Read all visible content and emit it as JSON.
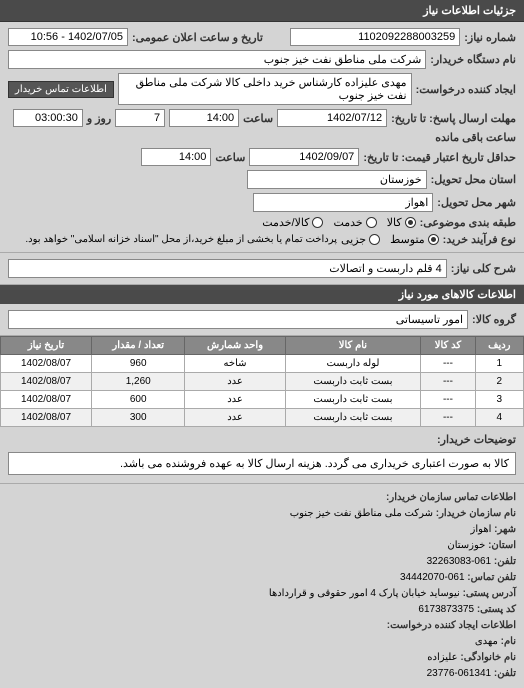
{
  "header": {
    "title": "جزئیات اطلاعات نیاز"
  },
  "info": {
    "request_number_label": "شماره نیاز:",
    "request_number": "1102092288003259",
    "public_datetime_label": "تاریخ و ساعت اعلان عمومی:",
    "public_datetime": "1402/07/05 - 10:56",
    "org_label": "نام دستگاه خریدار:",
    "org_value": "شرکت ملی مناطق نفت خیز جنوب",
    "requester_label": "ایجاد کننده درخواست:",
    "requester_value": "مهدی  علیزاده  کارشناس خرید داخلی کالا شرکت ملی مناطق نفت خیز جنوب",
    "contact_btn": "اطلاعات تماس خریدار",
    "deadline_send_label": "مهلت ارسال پاسخ: تا تاریخ:",
    "deadline_send_date": "1402/07/12",
    "deadline_send_time_label": "ساعت",
    "deadline_send_time": "14:00",
    "days_label": "روز و",
    "days_value": "7",
    "remain_label": "ساعت باقی مانده",
    "remain_value": "03:00:30",
    "validity_label": "حداقل تاریخ اعتبار قیمت: تا تاریخ:",
    "validity_date": "1402/09/07",
    "validity_time_label": "ساعت",
    "validity_time": "14:00",
    "province_label": "استان محل تحویل:",
    "province_value": "خوزستان",
    "city_label": "شهر محل تحویل:",
    "city_value": "اهواز",
    "subject_type_label": "طبقه بندی موضوعی:",
    "subject_kala": "کالا",
    "subject_service": "خدمت",
    "subject_both": "کالا/خدمت",
    "process_label": "نوع فرآیند خرید:",
    "process_avg": "متوسط",
    "process_partial": "جزیی",
    "process_note": "پرداخت تمام یا بخشی از مبلغ خرید،از محل \"اسناد خزانه اسلامی\" خواهد بود.",
    "desc_label": "شرح کلی نیاز:",
    "desc_value": "4 قلم داربست و اتصالات"
  },
  "goods_header": "اطلاعات کالاهای مورد نیاز",
  "goods_group_label": "گروه کالا:",
  "goods_group_value": "امور تاسیساتی",
  "table": {
    "columns": [
      "ردیف",
      "کد کالا",
      "نام کالا",
      "واحد شمارش",
      "تعداد / مقدار",
      "تاریخ نیاز"
    ],
    "rows": [
      [
        "1",
        "---",
        "لوله داربست",
        "شاخه",
        "960",
        "1402/08/07"
      ],
      [
        "2",
        "---",
        "بست ثابت داربست",
        "عدد",
        "1,260",
        "1402/08/07"
      ],
      [
        "3",
        "---",
        "بست ثابت داربست",
        "عدد",
        "600",
        "1402/08/07"
      ],
      [
        "4",
        "---",
        "بست ثابت داربست",
        "عدد",
        "300",
        "1402/08/07"
      ]
    ]
  },
  "buyer_notes_label": "توضیحات خریدار:",
  "buyer_notes": "کالا به صورت اعتباری خریداری می گردد. هزینه ارسال کالا به عهده فروشنده می باشد.",
  "contact": {
    "header": "اطلاعات تماس سازمان خریدار:",
    "org_name_label": "نام سازمان خریدار:",
    "org_name": "شرکت ملی مناطق نفت خیز جنوب",
    "city_label": "شهر:",
    "city": "اهواز",
    "province_label": "استان:",
    "province": "خوزستان",
    "phone_label": "تلفن:",
    "phone": "061-32263083",
    "fax_label": "تلفن تماس:",
    "fax": "061-34442070",
    "address_label": "آدرس پستی:",
    "address": "نیوساید خیابان پارک 4 امور حقوقی و قراردادها",
    "postal_label": "کد پستی:",
    "postal": "6173873375",
    "creator_header": "اطلاعات ایجاد کننده درخواست:",
    "name_label": "نام:",
    "name": "مهدی",
    "family_label": "نام خانوادگی:",
    "family": "علیزاده",
    "tel_label": "تلفن:",
    "tel": "061341-23776"
  }
}
